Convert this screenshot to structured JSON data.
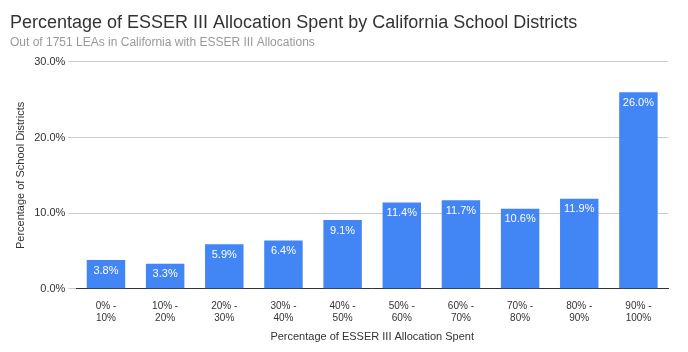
{
  "chart_data": {
    "type": "bar",
    "title": "Percentage of ESSER III Allocation Spent by California School Districts",
    "subtitle": "Out of 1751 LEAs in California with ESSER III Allocations",
    "x_label": "Percentage of ESSER III Allocation Spent",
    "y_label": "Percentage of School Districts",
    "categories": [
      "0% - 10%",
      "10% - 20%",
      "20% - 30%",
      "30% - 40%",
      "40% - 50%",
      "50% - 60%",
      "60% - 70%",
      "70% - 80%",
      "80% - 90%",
      "90% - 100%"
    ],
    "values": [
      3.8,
      3.3,
      5.9,
      6.4,
      9.1,
      11.4,
      11.7,
      10.6,
      11.9,
      26.0
    ],
    "value_labels": [
      "3.8%",
      "3.3%",
      "5.9%",
      "6.4%",
      "9.1%",
      "11.4%",
      "11.7%",
      "10.6%",
      "11.9%",
      "26.0%"
    ],
    "color": "#4285f4",
    "ylim": [
      0,
      30
    ],
    "yticks": [
      {
        "value": 0,
        "label": "0.0%"
      },
      {
        "value": 10,
        "label": "10.0%"
      },
      {
        "value": 20,
        "label": "20.0%"
      },
      {
        "value": 30,
        "label": "30.0%"
      }
    ],
    "grid": true,
    "data_labels": true
  }
}
